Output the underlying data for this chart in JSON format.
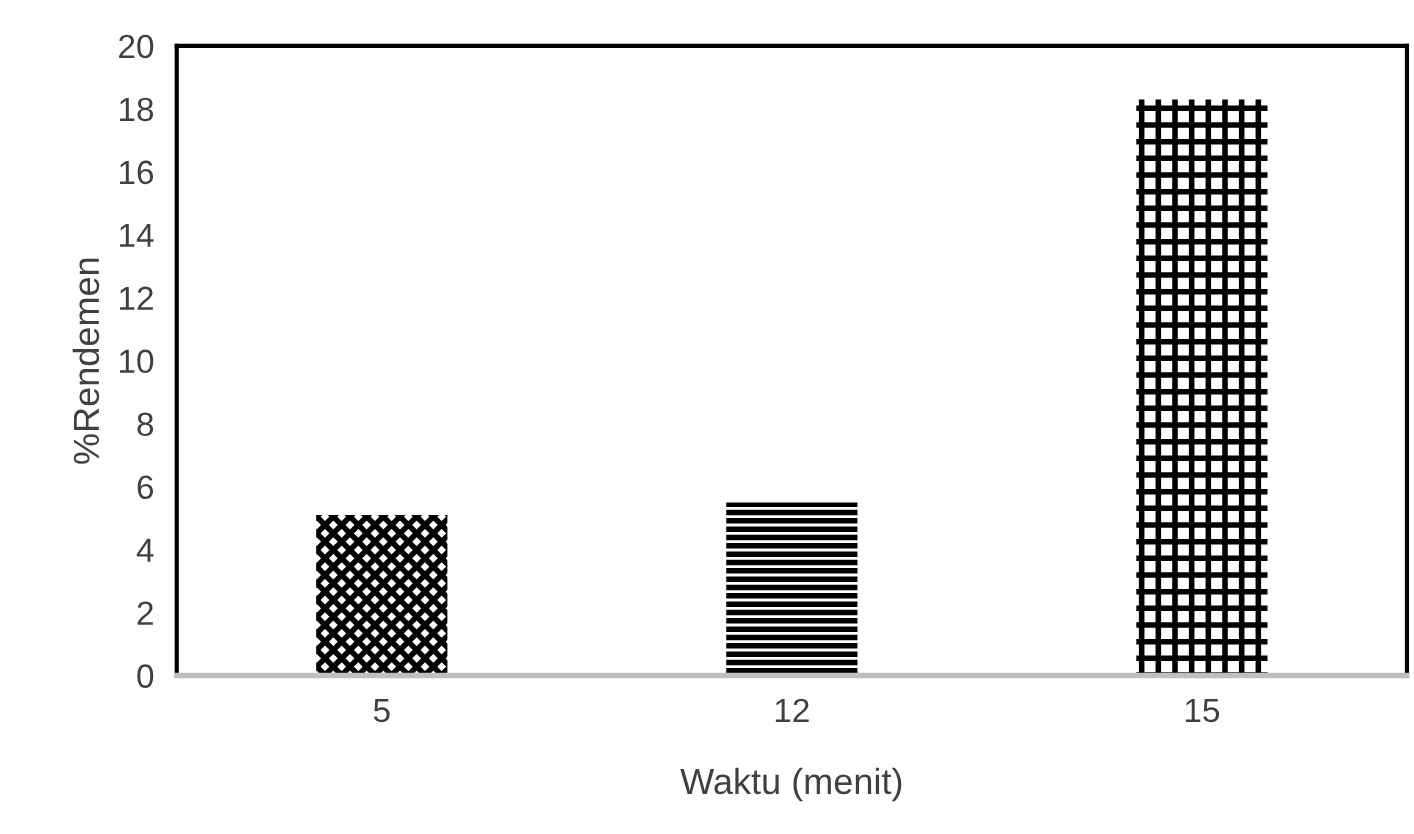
{
  "chart_data": {
    "type": "bar",
    "xlabel": "Waktu (menit)",
    "ylabel": "%Rendemen",
    "categories": [
      "5",
      "12",
      "15"
    ],
    "values": [
      5.1,
      5.5,
      18.3
    ],
    "colors": [
      "#000000",
      "#000000",
      "#000000"
    ],
    "ylim": [
      0,
      20
    ],
    "yticks": [
      0,
      2,
      4,
      6,
      8,
      10,
      12,
      14,
      16,
      18,
      20
    ],
    "grid": false,
    "legend": false
  }
}
